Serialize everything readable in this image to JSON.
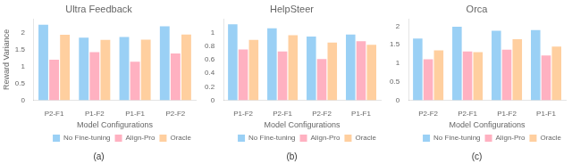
{
  "chart_data": [
    {
      "type": "bar",
      "title": "Ultra Feedback",
      "annotations": [
        "(a)"
      ],
      "xlabel": "Model Configurations",
      "ylabel": "Reward Variance",
      "categories": [
        "P2-F1",
        "P1-F2",
        "P1-F1",
        "P2-F2"
      ],
      "series": [
        {
          "name": "No Fine-tuning",
          "values": [
            2.23,
            1.85,
            1.87,
            2.18
          ]
        },
        {
          "name": "Align-Pro",
          "values": [
            1.2,
            1.42,
            1.14,
            1.38
          ]
        },
        {
          "name": "Oracle",
          "values": [
            1.93,
            1.78,
            1.79,
            1.94
          ]
        }
      ],
      "ylim": [
        0,
        2.4
      ],
      "yticks": [
        0,
        0.5,
        1,
        1.5,
        2
      ],
      "grid": false,
      "legend": "lower right"
    },
    {
      "type": "bar",
      "title": "HelpSteer",
      "annotations": [
        "(b)"
      ],
      "xlabel": "Model Configurations",
      "categories": [
        "P1-F2",
        "P2-F1",
        "P2-F2",
        "P1-F1"
      ],
      "series": [
        {
          "name": "No Fine-tuning",
          "values": [
            1.12,
            1.06,
            0.94,
            0.97
          ]
        },
        {
          "name": "Align-Pro",
          "values": [
            0.75,
            0.72,
            0.61,
            0.87
          ]
        },
        {
          "name": "Oracle",
          "values": [
            0.89,
            0.96,
            0.85,
            0.82
          ]
        }
      ],
      "ylim": [
        0,
        1.2
      ],
      "yticks": [
        0,
        0.2,
        0.4,
        0.6,
        0.8,
        1
      ],
      "grid": false,
      "legend": "lower right"
    },
    {
      "type": "bar",
      "title": "Orca",
      "annotations": [
        "(c)"
      ],
      "xlabel": "Model Configurations",
      "categories": [
        "P2-F2",
        "P2-F1",
        "P1-F2",
        "P1-F1"
      ],
      "series": [
        {
          "name": "No Fine-tuning",
          "values": [
            1.67,
            1.99,
            1.88,
            1.9
          ]
        },
        {
          "name": "Align-Pro",
          "values": [
            1.11,
            1.32,
            1.37,
            1.21
          ]
        },
        {
          "name": "Oracle",
          "values": [
            1.35,
            1.3,
            1.65,
            1.45
          ]
        }
      ],
      "ylim": [
        0,
        2.2
      ],
      "yticks": [
        0,
        0.5,
        1,
        1.5,
        2
      ],
      "grid": false,
      "legend": "lower right"
    }
  ]
}
